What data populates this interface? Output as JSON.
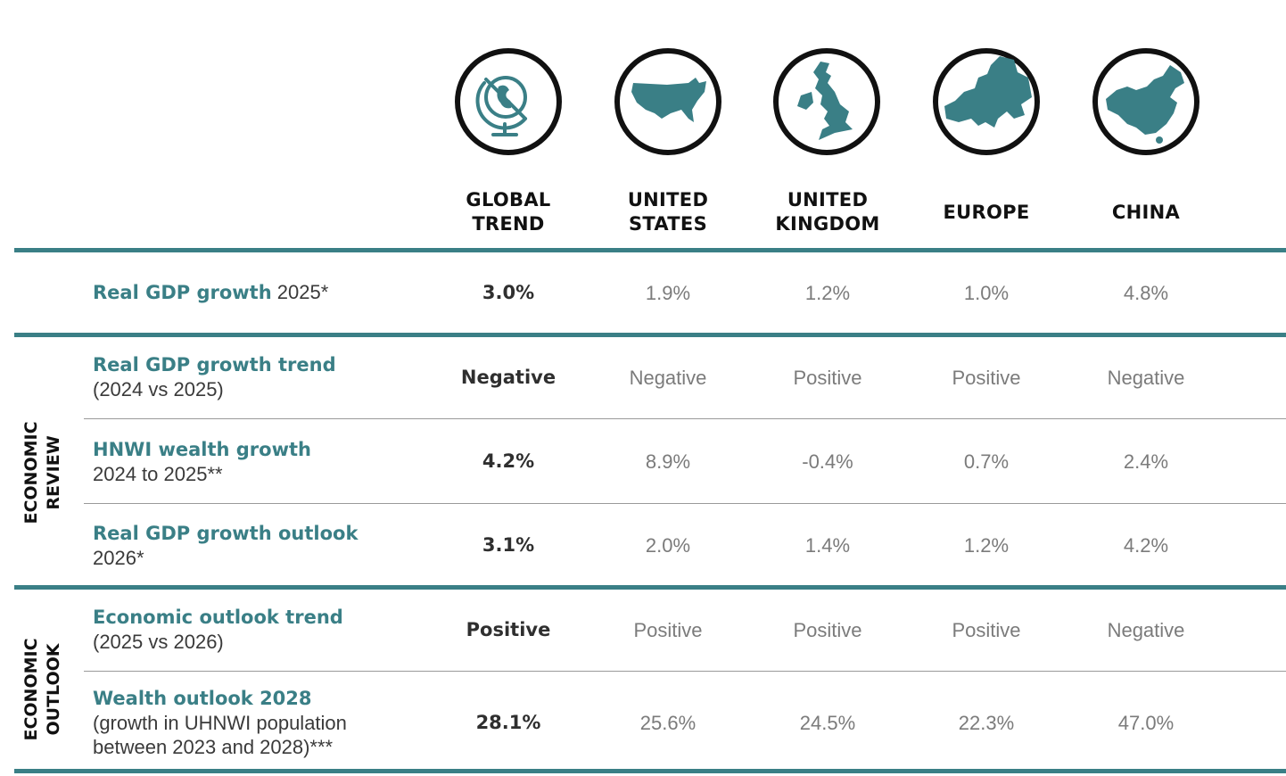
{
  "columns": [
    {
      "id": "global",
      "label_line1": "GLOBAL",
      "label_line2": "TREND",
      "icon": "globe-icon"
    },
    {
      "id": "us",
      "label_line1": "UNITED",
      "label_line2": "STATES",
      "icon": "usa-map-icon"
    },
    {
      "id": "uk",
      "label_line1": "UNITED",
      "label_line2": "KINGDOM",
      "icon": "uk-map-icon"
    },
    {
      "id": "europe",
      "label_line1": "EUROPE",
      "label_line2": "",
      "icon": "europe-map-icon"
    },
    {
      "id": "china",
      "label_line1": "CHINA",
      "label_line2": "",
      "icon": "china-map-icon"
    }
  ],
  "sections": {
    "review": {
      "line1": "ECONOMIC",
      "line2": "REVIEW"
    },
    "outlook": {
      "line1": "ECONOMIC",
      "line2": "OUTLOOK"
    }
  },
  "rows": [
    {
      "title": "Real GDP growth",
      "suffix": " 2025*",
      "sub": "",
      "values": [
        "3.0%",
        "1.9%",
        "1.2%",
        "1.0%",
        "4.8%"
      ]
    },
    {
      "title": "Real GDP growth trend",
      "suffix": "",
      "sub": "(2024 vs 2025)",
      "values": [
        "Negative",
        "Negative",
        "Positive",
        "Positive",
        "Negative"
      ]
    },
    {
      "title": "HNWI wealth growth",
      "suffix": "",
      "sub": "2024 to 2025**",
      "values": [
        "4.2%",
        "8.9%",
        "-0.4%",
        "0.7%",
        "2.4%"
      ]
    },
    {
      "title": "Real GDP growth outlook",
      "suffix": "",
      "sub": "2026*",
      "values": [
        "3.1%",
        "2.0%",
        "1.4%",
        "1.2%",
        "4.2%"
      ]
    },
    {
      "title": "Economic outlook trend",
      "suffix": "",
      "sub": "(2025 vs 2026)",
      "values": [
        "Positive",
        "Positive",
        "Positive",
        "Positive",
        "Negative"
      ]
    },
    {
      "title": "Wealth outlook 2028",
      "suffix": "",
      "sub": "(growth in UHNWI population",
      "sub2": "between 2023 and 2028)***",
      "values": [
        "28.1%",
        "25.6%",
        "24.5%",
        "22.3%",
        "47.0%"
      ]
    }
  ],
  "colors": {
    "accent": "#3a7f86",
    "text": "#3a3a3a",
    "muted": "#7b7b7b"
  }
}
